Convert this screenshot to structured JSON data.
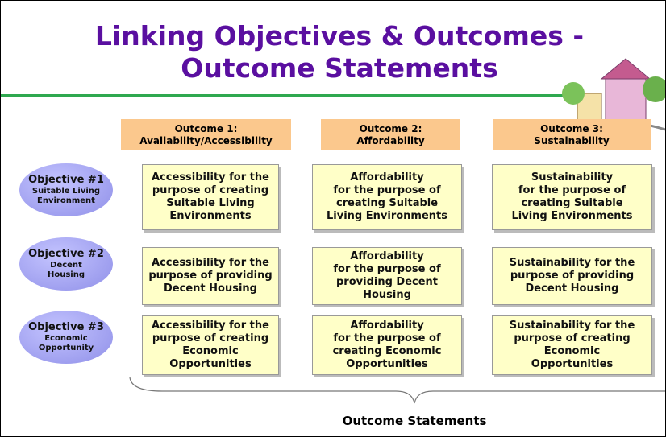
{
  "title": [
    "Linking Objectives & Outcomes -",
    "Outcome Statements"
  ],
  "outcomes": [
    [
      "Outcome 1:",
      "Availability/Accessibility"
    ],
    [
      "Outcome 2:",
      "Affordability"
    ],
    [
      "Outcome 3:",
      "Sustainability"
    ]
  ],
  "objectives": [
    {
      "label": "Objective #1",
      "sub": [
        "Suitable Living",
        "Environment"
      ]
    },
    {
      "label": "Objective #2",
      "sub": [
        "Decent",
        "Housing"
      ]
    },
    {
      "label": "Objective #3",
      "sub": [
        "Economic",
        "Opportunity"
      ]
    }
  ],
  "cells": [
    [
      [
        "Accessibility for the",
        "purpose of creating",
        "Suitable Living",
        "Environments"
      ],
      [
        "Affordability",
        "for the purpose of",
        "creating  Suitable",
        "Living Environments"
      ],
      [
        "Sustainability",
        "for the purpose of",
        "creating Suitable",
        "Living Environments"
      ]
    ],
    [
      [
        "Accessibility for the",
        "purpose of providing",
        "Decent Housing"
      ],
      [
        "Affordability",
        "for the purpose of",
        "providing Decent",
        "Housing"
      ],
      [
        "Sustainability for the",
        "purpose of providing",
        "Decent Housing"
      ]
    ],
    [
      [
        "Accessibility for the",
        "purpose of creating",
        "Economic",
        "Opportunities"
      ],
      [
        "Affordability",
        "for the purpose of",
        "creating Economic",
        "Opportunities"
      ],
      [
        "Sustainability for the",
        "purpose of creating",
        "Economic",
        "Opportunities"
      ]
    ]
  ],
  "footer": "Outcome Statements"
}
